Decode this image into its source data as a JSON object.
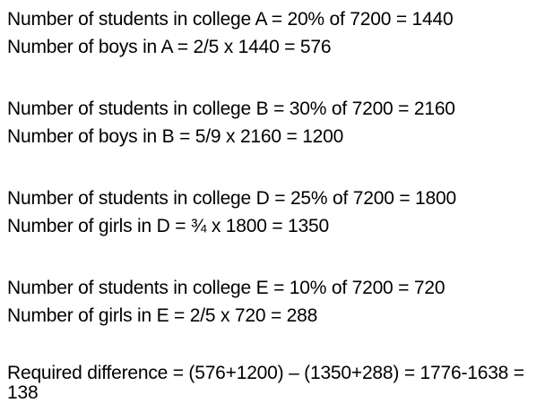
{
  "blocks": [
    {
      "lines": [
        "Number of students in college A = 20% of 7200 = 1440",
        "Number of boys in A = 2/5 x 1440 = 576"
      ]
    },
    {
      "lines": [
        "Number of students in college B = 30% of 7200 = 2160",
        "Number of boys in B = 5/9 x 2160 = 1200"
      ]
    },
    {
      "lines": [
        "Number of students in college D = 25% of 7200 = 1800",
        "Number of girls in D = ¾ x 1800 = 1350"
      ]
    },
    {
      "lines": [
        "Number of students in college E = 10% of 7200 = 720",
        "Number of girls in E = 2/5 x 720 = 288"
      ]
    },
    {
      "lines": [
        "Required difference = (576+1200) – (1350+288) = 1776-1638 = 138"
      ]
    }
  ]
}
